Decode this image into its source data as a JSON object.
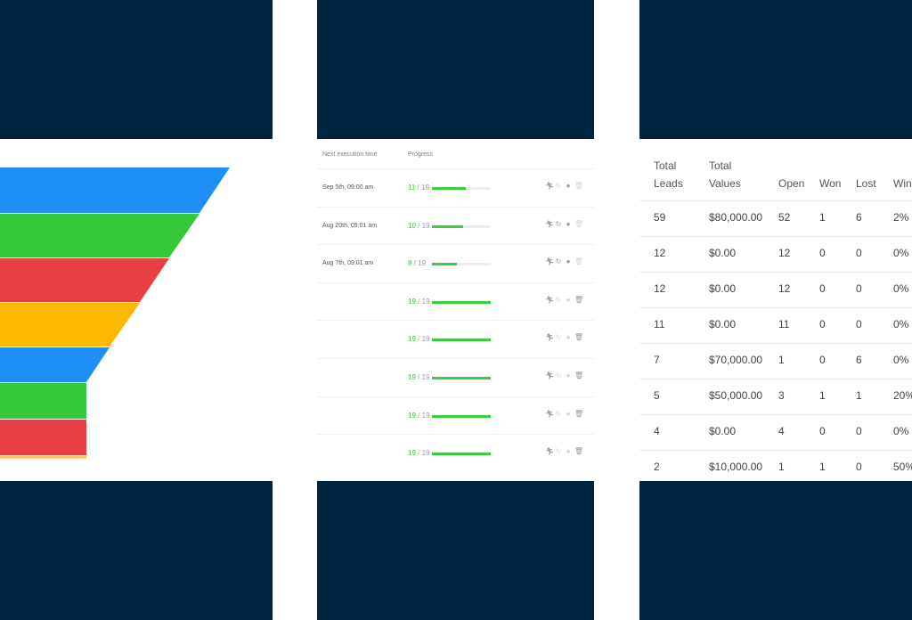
{
  "funnel": {
    "bands": [
      {
        "color": "#1e90f5"
      },
      {
        "color": "#35c93a"
      },
      {
        "color": "#e73f42"
      },
      {
        "color": "#ffb800"
      },
      {
        "color": "#1e90f5"
      },
      {
        "color": "#35c93a"
      },
      {
        "color": "#e73f42"
      },
      {
        "color": "#f5c873"
      }
    ]
  },
  "automation": {
    "headers": {
      "next_execution": "Next execution time",
      "progress": "Progress"
    },
    "rows": [
      {
        "date": "Sep 5th, 09:00 am",
        "done": "11",
        "total": "/ 19",
        "ratio": 0.58,
        "refresh_active": false,
        "stop_active": true,
        "delete_active": false
      },
      {
        "date": "Aug 20th, 09:01 am",
        "done": "10",
        "total": "/ 19",
        "ratio": 0.53,
        "refresh_active": true,
        "stop_active": true,
        "delete_active": false
      },
      {
        "date": "Aug 7th, 09:01 am",
        "done": "8",
        "total": "/ 19",
        "ratio": 0.42,
        "refresh_active": true,
        "stop_active": true,
        "delete_active": false
      },
      {
        "date": "",
        "done": "19",
        "total": "/ 19",
        "ratio": 1.0,
        "refresh_active": false,
        "stop_active": false,
        "delete_active": true
      },
      {
        "date": "",
        "done": "19",
        "total": "/ 19",
        "ratio": 1.0,
        "refresh_active": false,
        "stop_active": false,
        "delete_active": true
      },
      {
        "date": "",
        "done": "19",
        "total": "/ 19",
        "ratio": 1.0,
        "refresh_active": false,
        "stop_active": false,
        "delete_active": true
      },
      {
        "date": "",
        "done": "19",
        "total": "/ 19",
        "ratio": 1.0,
        "refresh_active": false,
        "stop_active": false,
        "delete_active": true
      },
      {
        "date": "",
        "done": "19",
        "total": "/ 19",
        "ratio": 1.0,
        "refresh_active": false,
        "stop_active": false,
        "delete_active": true
      }
    ],
    "icons": {
      "run": "running-person-icon",
      "refresh": "refresh-icon",
      "stop": "stop-icon",
      "delete": "trash-icon"
    },
    "colors": {
      "progress": "#3ccd3c"
    }
  },
  "leads": {
    "headers": {
      "total_leads_1": "Total",
      "total_leads_2": "Leads",
      "total_values_1": "Total",
      "total_values_2": "Values",
      "open": "Open",
      "won": "Won",
      "lost": "Lost",
      "win": "Win"
    },
    "rows": [
      [
        "59",
        "$80,000.00",
        "52",
        "1",
        "6",
        "2%"
      ],
      [
        "12",
        "$0.00",
        "12",
        "0",
        "0",
        "0%"
      ],
      [
        "12",
        "$0.00",
        "12",
        "0",
        "0",
        "0%"
      ],
      [
        "11",
        "$0.00",
        "11",
        "0",
        "0",
        "0%"
      ],
      [
        "7",
        "$70,000.00",
        "1",
        "0",
        "6",
        "0%"
      ],
      [
        "5",
        "$50,000.00",
        "3",
        "1",
        "1",
        "20%"
      ],
      [
        "4",
        "$0.00",
        "4",
        "0",
        "0",
        "0%"
      ],
      [
        "2",
        "$10,000.00",
        "1",
        "1",
        "0",
        "50%"
      ]
    ]
  },
  "background": {
    "color": "#00253e"
  }
}
